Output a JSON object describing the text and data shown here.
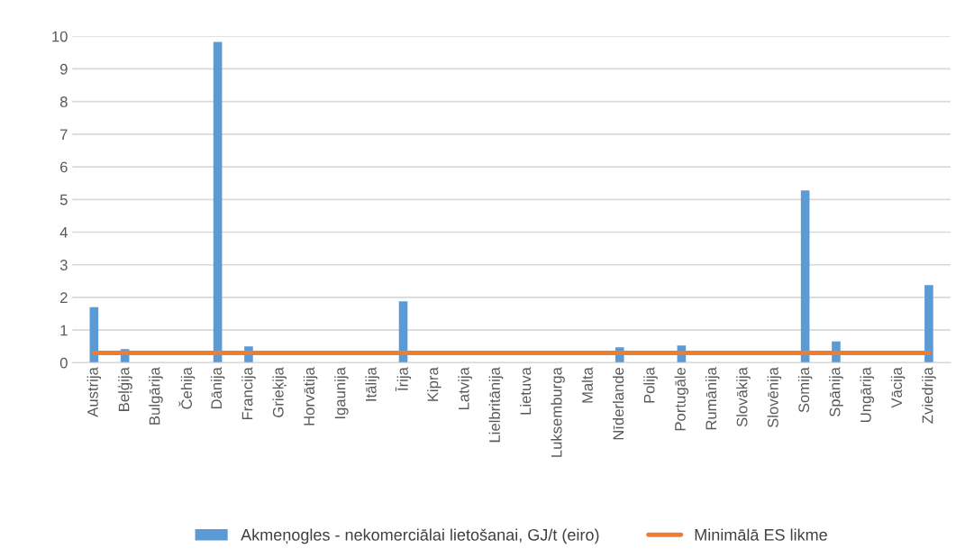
{
  "chart_data": {
    "type": "bar",
    "categories": [
      "Austrija",
      "Beļģija",
      "Bulgārija",
      "Čehija",
      "Dānija",
      "Francija",
      "Grieķija",
      "Horvātija",
      "Igaunija",
      "Itālija",
      "Īrija",
      "Kipra",
      "Latvija",
      "Lielbritānija",
      "Lietuva",
      "Luksemburga",
      "Malta",
      "Nīderlande",
      "Polija",
      "Portugāle",
      "Rumānija",
      "Slovākija",
      "Slovēnija",
      "Somija",
      "Spānija",
      "Ungārija",
      "Vācija",
      "Zviedrija"
    ],
    "series": [
      {
        "name": "Akmeņogles - nekomerciālai lietošanai, GJ/t (eiro)",
        "color": "#5b9bd5",
        "values": [
          1.7,
          0.42,
          null,
          null,
          9.83,
          0.5,
          null,
          null,
          null,
          null,
          1.88,
          null,
          null,
          0,
          null,
          0,
          null,
          0.47,
          null,
          0.53,
          null,
          0,
          null,
          5.28,
          0.65,
          null,
          null,
          2.38
        ]
      },
      {
        "name": "Minimālā ES likme",
        "type": "line",
        "color": "#ed7d31",
        "values": [
          0.3,
          0.3,
          0.3,
          0.3,
          0.3,
          0.3,
          0.3,
          0.3,
          0.3,
          0.3,
          0.3,
          0.3,
          0.3,
          0.3,
          0.3,
          0.3,
          0.3,
          0.3,
          0.3,
          0.3,
          0.3,
          0.3,
          0.3,
          0.3,
          0.3,
          0.3,
          0.3,
          0.3
        ]
      }
    ],
    "ylim": [
      0,
      10
    ],
    "yticks": [
      0,
      1,
      2,
      3,
      4,
      5,
      6,
      7,
      8,
      9,
      10
    ],
    "grid": "y",
    "legend": "bottom"
  }
}
